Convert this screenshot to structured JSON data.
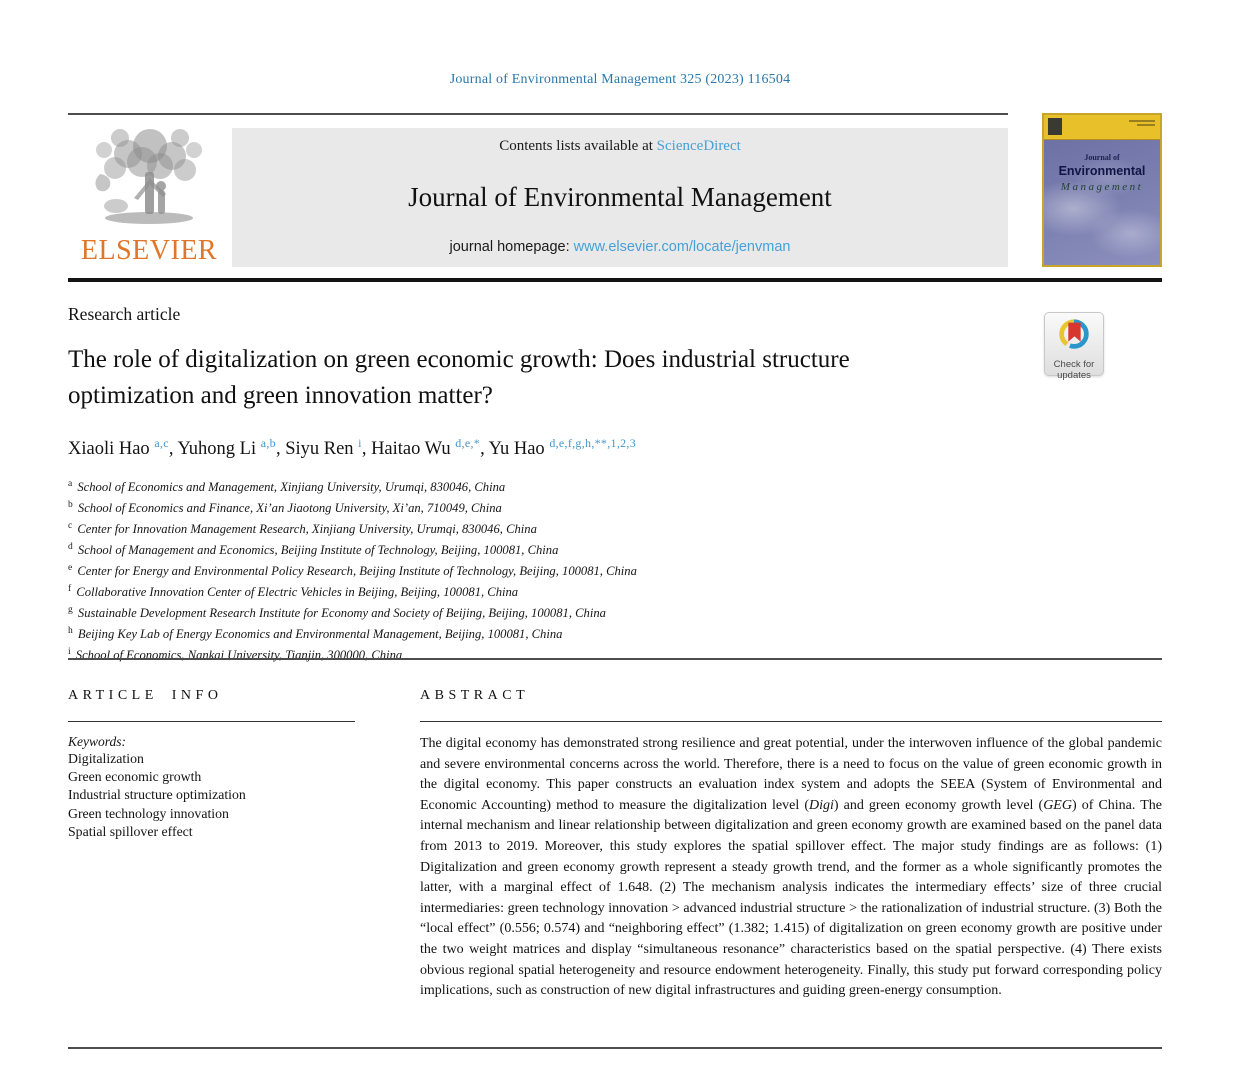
{
  "page": {
    "citation": "Journal of Environmental Management 325 (2023) 116504"
  },
  "masthead": {
    "contents_prefix": "Contents lists available at ",
    "sciencedirect_label": "ScienceDirect",
    "journal_title": "Journal of Environmental Management",
    "homepage_prefix": "journal homepage: ",
    "homepage_url": "www.elsevier.com/locate/jenvman",
    "elsevier_wordmark": "ELSEVIER",
    "cover": {
      "line1": "Journal of",
      "line2": "Environmental",
      "line3": "Management"
    }
  },
  "article": {
    "type_label": "Research article",
    "title": "The role of digitalization on green economic growth: Does industrial structure optimization and green innovation matter?",
    "check_updates_label": "Check for updates",
    "authors": [
      {
        "name": "Xiaoli Hao",
        "sup": "a,c"
      },
      {
        "name": "Yuhong Li",
        "sup": "a,b"
      },
      {
        "name": "Siyu Ren",
        "sup": "i"
      },
      {
        "name": "Haitao Wu",
        "sup": "d,e,*"
      },
      {
        "name": "Yu Hao",
        "sup": "d,e,f,g,h,**,1,2,3"
      }
    ],
    "affiliations": [
      {
        "sup": "a",
        "text": "School of Economics and Management, Xinjiang University, Urumqi, 830046, China"
      },
      {
        "sup": "b",
        "text": "School of Economics and Finance, Xi’an Jiaotong University, Xi’an, 710049, China"
      },
      {
        "sup": "c",
        "text": "Center for Innovation Management Research, Xinjiang University, Urumqi, 830046, China"
      },
      {
        "sup": "d",
        "text": "School of Management and Economics, Beijing Institute of Technology, Beijing, 100081, China"
      },
      {
        "sup": "e",
        "text": "Center for Energy and Environmental Policy Research, Beijing Institute of Technology, Beijing, 100081, China"
      },
      {
        "sup": "f",
        "text": "Collaborative Innovation Center of Electric Vehicles in Beijing, Beijing, 100081, China"
      },
      {
        "sup": "g",
        "text": "Sustainable Development Research Institute for Economy and Society of Beijing, Beijing, 100081, China"
      },
      {
        "sup": "h",
        "text": "Beijing Key Lab of Energy Economics and Environmental Management, Beijing, 100081, China"
      },
      {
        "sup": "i",
        "text": "School of Economics, Nankai University, Tianjin, 300000, China"
      }
    ]
  },
  "article_info": {
    "heading": "ARTICLE INFO",
    "keywords_label": "Keywords:",
    "keywords": [
      "Digitalization",
      "Green economic growth",
      "Industrial structure optimization",
      "Green technology innovation",
      "Spatial spillover effect"
    ]
  },
  "abstract": {
    "heading": "ABSTRACT",
    "segments": [
      {
        "text": "The digital economy has demonstrated strong resilience and great potential, under the interwoven influence of the global pandemic and severe environmental concerns across the world. Therefore, there is a need to focus on the value of green economic growth in the digital economy. This paper constructs an evaluation index system and adopts the SEEA (System of Environmental and Economic Accounting) method to measure the digitalization level (",
        "italic": false
      },
      {
        "text": "Digi",
        "italic": true
      },
      {
        "text": ") and green economy growth level (",
        "italic": false
      },
      {
        "text": "GEG",
        "italic": true
      },
      {
        "text": ") of China. The internal mechanism and linear relationship between digitalization and green economy growth are examined based on the panel data from 2013 to 2019. Moreover, this study explores the spatial spillover effect. The major study findings are as follows: (1) Digitalization and green economy growth represent a steady growth trend, and the former as a whole significantly promotes the latter, with a marginal effect of 1.648. (2) The mechanism analysis indicates the intermediary effects’ size of three crucial intermediaries: green technology innovation > advanced industrial structure > the rationalization of industrial structure. (3) Both the “local effect” (0.556; 0.574) and “neighboring effect” (1.382; 1.415) of digitalization on green economy growth are positive under the two weight matrices and display “simultaneous resonance” characteristics based on the spatial perspective. (4) There exists obvious regional spatial heterogeneity and resource endowment heterogeneity. Finally, this study put forward corresponding policy implications, such as construction of new digital infrastructures and guiding green-energy consumption.",
        "italic": false
      }
    ]
  }
}
